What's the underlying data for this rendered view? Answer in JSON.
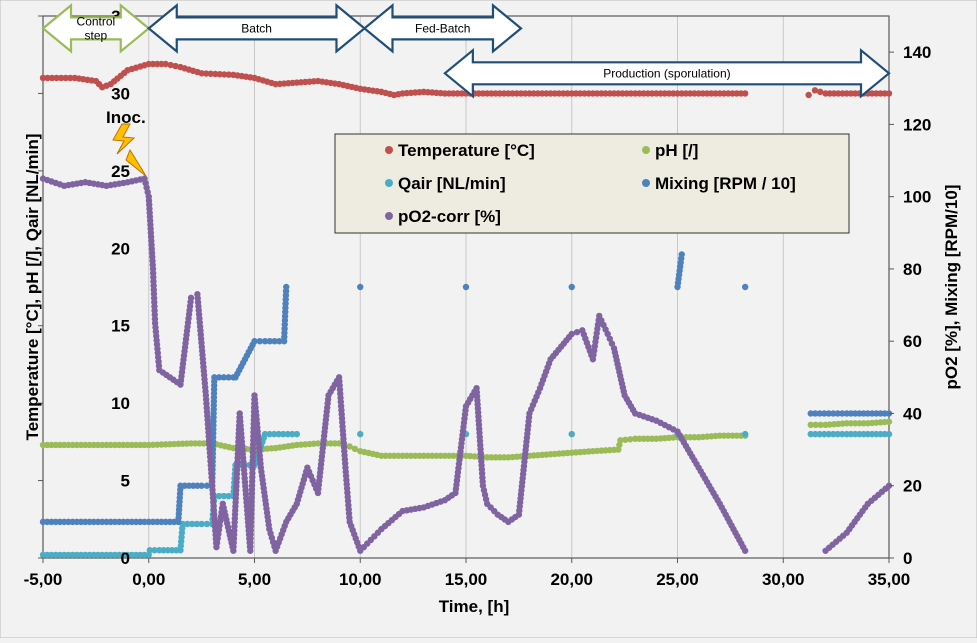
{
  "chart_data": {
    "type": "scatter",
    "xlabel": "Time, [h]",
    "ylabel": "Temperature [°C], pH [/],  Qair [NL/min]",
    "y2label": "pO2 [%],  Mixing [RPM/10]",
    "xlim": [
      -5,
      35
    ],
    "ylim": [
      0,
      35
    ],
    "y2lim": [
      0,
      150
    ],
    "x_ticks": [
      -5,
      0,
      5,
      10,
      15,
      20,
      25,
      30,
      35
    ],
    "x_tick_labels": [
      "-5,00",
      "0,00",
      "5,00",
      "10,00",
      "15,00",
      "20,00",
      "25,00",
      "30,00",
      "35,00"
    ],
    "y_ticks": [
      0,
      5,
      10,
      15,
      20,
      25,
      30,
      35
    ],
    "y_tick_labels": [
      "0",
      "5",
      "10",
      "15",
      "20",
      "25",
      "30",
      "35"
    ],
    "y2_ticks": [
      0,
      20,
      40,
      60,
      80,
      100,
      120,
      140
    ],
    "y2_tick_labels": [
      "0",
      "20",
      "40",
      "60",
      "80",
      "100",
      "120",
      "140"
    ],
    "grid": "vertical",
    "legend_position": "upper-center",
    "series": [
      {
        "name": "Temperature [°C]",
        "axis": "left",
        "color": "#c0504d",
        "x": [
          -5,
          -3.5,
          -2.5,
          -2.2,
          -1.8,
          -1,
          0,
          0.8,
          1.5,
          2.5,
          4,
          5,
          6,
          7,
          8,
          9,
          10,
          11,
          11.6,
          12,
          13,
          14,
          15,
          16,
          17,
          18,
          19,
          20,
          21,
          22,
          23,
          24,
          25,
          26,
          27,
          28.2,
          31.2,
          31.5,
          32,
          33,
          34,
          35
        ],
        "y": [
          31,
          31,
          30.8,
          30.4,
          30.6,
          31.5,
          31.9,
          31.9,
          31.7,
          31.3,
          31.2,
          31.0,
          30.6,
          30.7,
          30.8,
          30.6,
          30.3,
          30.1,
          29.9,
          30.0,
          30.1,
          30.0,
          30.0,
          30.0,
          30.0,
          30.0,
          30.0,
          30.0,
          30.0,
          30.0,
          30.0,
          30.0,
          30.0,
          30.0,
          30.0,
          30.0,
          29.9,
          30.2,
          30.0,
          30.0,
          30.0,
          30.0
        ]
      },
      {
        "name": "pH [/]",
        "axis": "left",
        "color": "#9bbb59",
        "x": [
          -5,
          -3,
          -1,
          0,
          2,
          3,
          4,
          5,
          6,
          7,
          8,
          9,
          9.5,
          10,
          11,
          12,
          13,
          14,
          15,
          16,
          17,
          18,
          19,
          20,
          21,
          22.2,
          22.3,
          23,
          24,
          25,
          26,
          27,
          28.2,
          31.3,
          32,
          33,
          34,
          35
        ],
        "y": [
          7.3,
          7.3,
          7.3,
          7.3,
          7.4,
          7.4,
          7.1,
          7.0,
          7.1,
          7.3,
          7.4,
          7.4,
          7.2,
          6.9,
          6.6,
          6.6,
          6.6,
          6.6,
          6.6,
          6.5,
          6.5,
          6.6,
          6.7,
          6.8,
          6.9,
          7.0,
          7.6,
          7.7,
          7.7,
          7.8,
          7.8,
          7.9,
          7.9,
          8.6,
          8.6,
          8.7,
          8.7,
          8.8
        ]
      },
      {
        "name": "Qair [NL/min]",
        "axis": "left",
        "color": "#4bacc6",
        "x": [
          -5,
          -3,
          -1,
          0,
          0.05,
          0.5,
          1.5,
          1.6,
          2.5,
          3,
          3.1,
          4,
          4.1,
          5,
          5.5,
          7,
          10,
          15,
          20,
          25,
          28.2,
          31.3,
          33,
          35
        ],
        "y": [
          0.2,
          0.2,
          0.2,
          0.2,
          0.5,
          0.5,
          0.5,
          2.2,
          2.2,
          2.2,
          4.0,
          4.0,
          6.0,
          6.0,
          8.0,
          8.0,
          8.0,
          8.0,
          8.0,
          8.0,
          8.0,
          8.0,
          8.0,
          8.0
        ]
      },
      {
        "name": "Mixing [RPM / 10]",
        "axis": "right",
        "color": "#4f81bd",
        "x": [
          -5,
          -3,
          -1,
          1.4,
          1.5,
          2.5,
          3,
          3.1,
          4,
          4.1,
          5,
          5.5,
          6.4,
          6.5,
          10,
          15,
          20,
          25.2,
          25,
          28.2,
          31.3,
          33,
          35
        ],
        "y": [
          10,
          10,
          10,
          10,
          20,
          20,
          20,
          50,
          50,
          50,
          60,
          60,
          60,
          75,
          75,
          75,
          75,
          84,
          75,
          75,
          40,
          40,
          40
        ]
      },
      {
        "name": "pO2-corr [%]",
        "axis": "right",
        "color": "#8064a2",
        "x": [
          -5,
          -4,
          -3,
          -2,
          -1,
          -0.2,
          0,
          0.2,
          0.3,
          0.5,
          1,
          1.5,
          2,
          2.3,
          2.7,
          3,
          3.2,
          3.5,
          4,
          4.3,
          4.8,
          5,
          5.3,
          5.7,
          6,
          6.5,
          7,
          7.5,
          8,
          8.5,
          9,
          9.3,
          9.5,
          10,
          10.5,
          11,
          12,
          13,
          14,
          14.5,
          15,
          15.5,
          15.8,
          16,
          16.5,
          17,
          17.5,
          18,
          18.5,
          19,
          20,
          20.5,
          21,
          21.3,
          21.7,
          22,
          22.5,
          23,
          24,
          25,
          26,
          27,
          28.2,
          32,
          33,
          34,
          35
        ],
        "y": [
          105,
          103,
          104,
          103,
          104,
          105,
          100,
          80,
          65,
          52,
          50,
          48,
          72,
          73,
          45,
          20,
          3,
          15,
          2,
          40,
          2,
          45,
          25,
          8,
          2,
          10,
          15,
          25,
          18,
          45,
          50,
          25,
          10,
          2,
          5,
          8,
          13,
          14,
          16,
          18,
          42,
          47,
          20,
          15,
          12,
          10,
          12,
          40,
          47,
          55,
          62,
          63,
          55,
          67,
          62,
          58,
          45,
          40,
          38,
          35,
          25,
          15,
          2,
          2,
          7,
          15,
          20
        ]
      }
    ],
    "annotations": {
      "inoc_label": "Inoc.",
      "phases": [
        {
          "label": "Control step",
          "start": -5,
          "end": 0,
          "color": "#9bbb59",
          "fill": "#ffffff"
        },
        {
          "label": "Batch",
          "start": 0,
          "end": 10.2,
          "color": "#1f4e79",
          "fill": "#ffffff"
        },
        {
          "label": "Fed-Batch",
          "start": 10.2,
          "end": 17.6,
          "color": "#1f4e79",
          "fill": "#ffffff"
        },
        {
          "label": "Production (sporulation)",
          "start": 14,
          "end": 35,
          "color": "#1f4e79",
          "fill": "#ffffff"
        }
      ]
    }
  }
}
